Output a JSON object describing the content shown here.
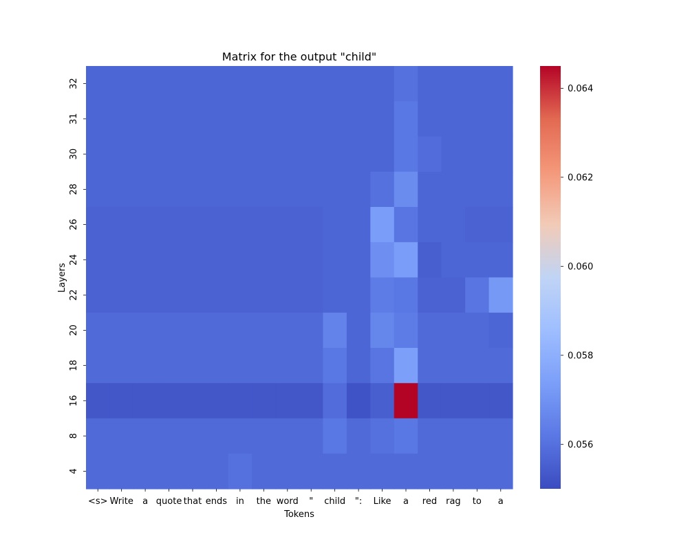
{
  "chart_data": {
    "type": "heatmap",
    "title": "Matrix for the output \"child\"",
    "xlabel": "Tokens",
    "ylabel": "Layers",
    "x_tokens": [
      "<s>",
      "Write",
      "a",
      "quote",
      "that",
      "ends",
      "in",
      "the",
      "word",
      "\"",
      "child",
      "\":",
      "Like",
      "a",
      "red",
      "rag",
      "to",
      "a"
    ],
    "y_layers": [
      "32",
      "31",
      "30",
      "28",
      "26",
      "24",
      "22",
      "20",
      "18",
      "16",
      "8",
      "4"
    ],
    "values": [
      [
        0.0557,
        0.0557,
        0.0557,
        0.0557,
        0.0557,
        0.0557,
        0.0557,
        0.0557,
        0.0557,
        0.0557,
        0.0557,
        0.0557,
        0.0557,
        0.056,
        0.0557,
        0.0557,
        0.0557,
        0.0557
      ],
      [
        0.0557,
        0.0557,
        0.0557,
        0.0557,
        0.0557,
        0.0557,
        0.0557,
        0.0557,
        0.0557,
        0.0557,
        0.0557,
        0.0557,
        0.0557,
        0.0562,
        0.0557,
        0.0557,
        0.0557,
        0.0557
      ],
      [
        0.0557,
        0.0557,
        0.0557,
        0.0557,
        0.0557,
        0.0557,
        0.0557,
        0.0557,
        0.0557,
        0.0557,
        0.0557,
        0.0557,
        0.0557,
        0.0562,
        0.0559,
        0.0557,
        0.0557,
        0.0557
      ],
      [
        0.0557,
        0.0557,
        0.0557,
        0.0557,
        0.0557,
        0.0557,
        0.0557,
        0.0557,
        0.0557,
        0.0557,
        0.0557,
        0.0557,
        0.056,
        0.0568,
        0.0557,
        0.0557,
        0.0557,
        0.0557
      ],
      [
        0.0556,
        0.0556,
        0.0556,
        0.0556,
        0.0556,
        0.0556,
        0.0556,
        0.0556,
        0.0556,
        0.0556,
        0.0557,
        0.0557,
        0.0573,
        0.0561,
        0.0557,
        0.0557,
        0.0556,
        0.0556
      ],
      [
        0.0556,
        0.0556,
        0.0556,
        0.0556,
        0.0556,
        0.0556,
        0.0556,
        0.0556,
        0.0556,
        0.0556,
        0.0557,
        0.0557,
        0.0569,
        0.0573,
        0.0555,
        0.0557,
        0.0557,
        0.0557
      ],
      [
        0.0556,
        0.0556,
        0.0556,
        0.0556,
        0.0556,
        0.0556,
        0.0556,
        0.0556,
        0.0556,
        0.0556,
        0.0557,
        0.0557,
        0.0563,
        0.0562,
        0.0556,
        0.0556,
        0.0561,
        0.0572
      ],
      [
        0.0558,
        0.0558,
        0.0558,
        0.0558,
        0.0558,
        0.0558,
        0.0558,
        0.0558,
        0.0558,
        0.0558,
        0.0565,
        0.0557,
        0.0566,
        0.0563,
        0.0558,
        0.0558,
        0.0558,
        0.0557
      ],
      [
        0.0558,
        0.0558,
        0.0558,
        0.0558,
        0.0558,
        0.0558,
        0.0558,
        0.0558,
        0.0558,
        0.0558,
        0.0562,
        0.0557,
        0.0561,
        0.0574,
        0.0558,
        0.0558,
        0.0558,
        0.0558
      ],
      [
        0.0553,
        0.0553,
        0.0553,
        0.0553,
        0.0553,
        0.0553,
        0.0553,
        0.0553,
        0.0553,
        0.0553,
        0.0559,
        0.0552,
        0.0555,
        0.0645,
        0.0553,
        0.0553,
        0.0553,
        0.0553
      ],
      [
        0.0558,
        0.0558,
        0.0558,
        0.0558,
        0.0558,
        0.0558,
        0.0558,
        0.0558,
        0.0558,
        0.0558,
        0.0562,
        0.0558,
        0.056,
        0.0562,
        0.0558,
        0.0558,
        0.0558,
        0.0558
      ],
      [
        0.0558,
        0.0558,
        0.0558,
        0.0558,
        0.0558,
        0.0558,
        0.056,
        0.0558,
        0.0558,
        0.0558,
        0.0558,
        0.0558,
        0.0558,
        0.0558,
        0.0558,
        0.0558,
        0.0558,
        0.0558
      ]
    ],
    "colormap": "coolwarm",
    "vmin": 0.055,
    "vmax": 0.0645,
    "colorbar_ticks": [
      "0.056",
      "0.058",
      "0.060",
      "0.062",
      "0.064"
    ],
    "colorbar_tick_values": [
      0.056,
      0.058,
      0.06,
      0.062,
      0.064
    ]
  }
}
